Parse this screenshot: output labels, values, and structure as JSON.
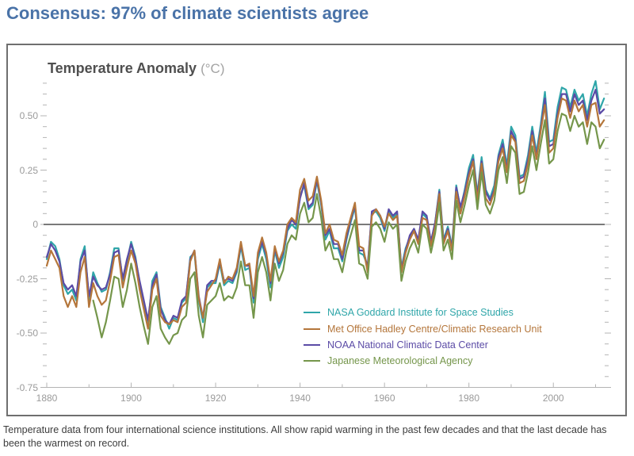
{
  "title": "Consensus: 97% of climate scientists agree",
  "chart": {
    "heading": "Temperature Anomaly",
    "unit": "(°C)"
  },
  "caption": "Temperature data from four international science institutions. All show rapid warming in the past few decades and that the last decade has been the warmest on record.",
  "colors": {
    "title_blue": "#4a73a8",
    "heading_gray": "#4f4f4f",
    "unit_gray": "#a3a3a3",
    "tick_label_gray": "#9a9a9a",
    "axis_gray": "#b4b4b4",
    "zero_line_gray": "#7a7a7a",
    "frame_border": "#6f6f6f",
    "caption_gray": "#3d3d3d"
  },
  "chart_data": {
    "type": "line",
    "title": "Temperature Anomaly (°C)",
    "xlabel": "",
    "ylabel": "Temperature Anomaly (°C)",
    "xlim": [
      1880,
      2013
    ],
    "ylim": [
      -0.78,
      0.68
    ],
    "grid": false,
    "legend_position": "inside-bottom-center",
    "x_ticks": [
      {
        "label": "1880",
        "value": 1880
      },
      {
        "label": "1900",
        "value": 1900
      },
      {
        "label": "1920",
        "value": 1920
      },
      {
        "label": "1940",
        "value": 1940
      },
      {
        "label": "1960",
        "value": 1960
      },
      {
        "label": "1980",
        "value": 1980
      },
      {
        "label": "2000",
        "value": 2000
      }
    ],
    "y_ticks": [
      {
        "label": "0.50",
        "value": 0.5
      },
      {
        "label": "0.25",
        "value": 0.25
      },
      {
        "label": "0",
        "value": 0
      },
      {
        "label": "-0.25",
        "value": -0.25
      },
      {
        "label": "-0.50",
        "value": -0.5
      },
      {
        "label": "-0.75",
        "value": -0.75
      }
    ],
    "minor_tick_step": 0.05,
    "x_minor_tick_step_years": 10,
    "series": [
      {
        "name": "NASA Goddard Institute for Space Studies",
        "color": "#2fa6a9",
        "start_year": 1880,
        "values": [
          -0.16,
          -0.08,
          -0.1,
          -0.16,
          -0.28,
          -0.32,
          -0.3,
          -0.35,
          -0.16,
          -0.1,
          -0.35,
          -0.22,
          -0.27,
          -0.31,
          -0.3,
          -0.22,
          -0.11,
          -0.11,
          -0.26,
          -0.17,
          -0.08,
          -0.15,
          -0.27,
          -0.36,
          -0.46,
          -0.26,
          -0.22,
          -0.38,
          -0.43,
          -0.48,
          -0.43,
          -0.44,
          -0.36,
          -0.34,
          -0.15,
          -0.13,
          -0.35,
          -0.45,
          -0.29,
          -0.27,
          -0.27,
          -0.18,
          -0.28,
          -0.26,
          -0.27,
          -0.22,
          -0.1,
          -0.21,
          -0.2,
          -0.36,
          -0.16,
          -0.09,
          -0.16,
          -0.29,
          -0.12,
          -0.2,
          -0.15,
          -0.03,
          0.0,
          -0.02,
          0.13,
          0.18,
          0.07,
          0.09,
          0.2,
          0.09,
          -0.07,
          -0.03,
          -0.11,
          -0.11,
          -0.17,
          -0.07,
          0.01,
          0.08,
          -0.13,
          -0.14,
          -0.19,
          0.05,
          0.06,
          0.03,
          -0.03,
          0.06,
          0.03,
          0.05,
          -0.2,
          -0.11,
          -0.06,
          -0.02,
          -0.08,
          0.05,
          0.03,
          -0.08,
          0.01,
          0.16,
          -0.07,
          -0.01,
          -0.1,
          0.18,
          0.07,
          0.16,
          0.26,
          0.32,
          0.14,
          0.31,
          0.16,
          0.12,
          0.18,
          0.32,
          0.39,
          0.27,
          0.45,
          0.41,
          0.22,
          0.23,
          0.32,
          0.45,
          0.33,
          0.46,
          0.61,
          0.38,
          0.39,
          0.54,
          0.63,
          0.62,
          0.54,
          0.62,
          0.57,
          0.6,
          0.5,
          0.6,
          0.66,
          0.53,
          0.58
        ]
      },
      {
        "name": "Met Office Hadley Centre/Climatic Research Unit",
        "color": "#b4763b",
        "start_year": 1880,
        "values": [
          -0.19,
          -0.12,
          -0.16,
          -0.2,
          -0.33,
          -0.38,
          -0.33,
          -0.38,
          -0.22,
          -0.15,
          -0.38,
          -0.27,
          -0.33,
          -0.37,
          -0.35,
          -0.26,
          -0.15,
          -0.14,
          -0.29,
          -0.2,
          -0.12,
          -0.18,
          -0.3,
          -0.39,
          -0.48,
          -0.3,
          -0.25,
          -0.42,
          -0.45,
          -0.46,
          -0.44,
          -0.45,
          -0.38,
          -0.36,
          -0.17,
          -0.12,
          -0.34,
          -0.43,
          -0.31,
          -0.28,
          -0.25,
          -0.16,
          -0.27,
          -0.24,
          -0.25,
          -0.2,
          -0.08,
          -0.19,
          -0.18,
          -0.33,
          -0.13,
          -0.06,
          -0.13,
          -0.26,
          -0.1,
          -0.17,
          -0.12,
          0.0,
          0.03,
          0.01,
          0.16,
          0.21,
          0.11,
          0.13,
          0.22,
          0.11,
          -0.04,
          0.0,
          -0.07,
          -0.08,
          -0.14,
          -0.04,
          0.03,
          0.1,
          -0.1,
          -0.11,
          -0.22,
          0.04,
          0.07,
          0.04,
          -0.01,
          0.05,
          0.02,
          0.04,
          -0.22,
          -0.13,
          -0.07,
          -0.03,
          -0.09,
          0.03,
          0.02,
          -0.1,
          -0.01,
          0.14,
          -0.09,
          -0.03,
          -0.12,
          0.15,
          0.05,
          0.13,
          0.22,
          0.29,
          0.11,
          0.28,
          0.12,
          0.09,
          0.15,
          0.29,
          0.35,
          0.24,
          0.41,
          0.38,
          0.19,
          0.2,
          0.28,
          0.41,
          0.3,
          0.43,
          0.55,
          0.33,
          0.35,
          0.49,
          0.58,
          0.57,
          0.49,
          0.57,
          0.52,
          0.55,
          0.45,
          0.55,
          0.56,
          0.45,
          0.48
        ]
      },
      {
        "name": "NOAA National Climatic Data Center",
        "color": "#5b4ba6",
        "start_year": 1880,
        "values": [
          -0.15,
          -0.09,
          -0.12,
          -0.17,
          -0.27,
          -0.3,
          -0.28,
          -0.33,
          -0.17,
          -0.12,
          -0.33,
          -0.24,
          -0.28,
          -0.3,
          -0.29,
          -0.23,
          -0.13,
          -0.12,
          -0.25,
          -0.16,
          -0.09,
          -0.16,
          -0.26,
          -0.35,
          -0.44,
          -0.28,
          -0.23,
          -0.39,
          -0.44,
          -0.46,
          -0.42,
          -0.43,
          -0.35,
          -0.33,
          -0.16,
          -0.12,
          -0.33,
          -0.43,
          -0.28,
          -0.26,
          -0.26,
          -0.17,
          -0.26,
          -0.25,
          -0.26,
          -0.21,
          -0.09,
          -0.19,
          -0.19,
          -0.34,
          -0.14,
          -0.08,
          -0.14,
          -0.27,
          -0.11,
          -0.18,
          -0.13,
          -0.02,
          0.02,
          0.0,
          0.12,
          0.19,
          0.08,
          0.1,
          0.21,
          0.1,
          -0.05,
          -0.02,
          -0.09,
          -0.09,
          -0.16,
          -0.06,
          0.02,
          0.09,
          -0.12,
          -0.12,
          -0.2,
          0.06,
          0.07,
          0.04,
          -0.02,
          0.07,
          0.04,
          0.06,
          -0.21,
          -0.12,
          -0.05,
          -0.02,
          -0.07,
          0.06,
          0.04,
          -0.08,
          0.01,
          0.15,
          -0.08,
          -0.02,
          -0.11,
          0.17,
          0.08,
          0.15,
          0.24,
          0.3,
          0.13,
          0.29,
          0.15,
          0.11,
          0.16,
          0.31,
          0.37,
          0.25,
          0.43,
          0.39,
          0.21,
          0.22,
          0.3,
          0.43,
          0.31,
          0.44,
          0.58,
          0.36,
          0.37,
          0.51,
          0.6,
          0.6,
          0.52,
          0.6,
          0.55,
          0.57,
          0.48,
          0.57,
          0.62,
          0.51,
          0.53
        ]
      },
      {
        "name": "Japanese Meteorological Agency",
        "color": "#75964b",
        "start_year": 1891,
        "values": [
          -0.35,
          -0.43,
          -0.52,
          -0.45,
          -0.35,
          -0.24,
          -0.25,
          -0.38,
          -0.3,
          -0.18,
          -0.27,
          -0.38,
          -0.47,
          -0.55,
          -0.38,
          -0.33,
          -0.48,
          -0.52,
          -0.55,
          -0.51,
          -0.5,
          -0.44,
          -0.42,
          -0.25,
          -0.22,
          -0.42,
          -0.52,
          -0.37,
          -0.35,
          -0.33,
          -0.27,
          -0.35,
          -0.33,
          -0.34,
          -0.29,
          -0.17,
          -0.28,
          -0.28,
          -0.43,
          -0.22,
          -0.15,
          -0.22,
          -0.35,
          -0.18,
          -0.26,
          -0.21,
          -0.09,
          -0.05,
          -0.07,
          0.05,
          0.1,
          0.01,
          0.03,
          0.14,
          0.03,
          -0.12,
          -0.08,
          -0.16,
          -0.16,
          -0.22,
          -0.12,
          -0.05,
          0.02,
          -0.18,
          -0.19,
          -0.25,
          -0.01,
          0.01,
          -0.02,
          -0.08,
          0.01,
          -0.02,
          0.0,
          -0.26,
          -0.17,
          -0.11,
          -0.07,
          -0.13,
          0.0,
          -0.02,
          -0.13,
          -0.04,
          0.1,
          -0.12,
          -0.07,
          -0.16,
          0.11,
          0.01,
          0.09,
          0.18,
          0.25,
          0.07,
          0.24,
          0.09,
          0.05,
          0.11,
          0.25,
          0.31,
          0.19,
          0.36,
          0.33,
          0.14,
          0.15,
          0.24,
          0.36,
          0.25,
          0.37,
          0.48,
          0.28,
          0.3,
          0.43,
          0.51,
          0.5,
          0.43,
          0.5,
          0.45,
          0.47,
          0.37,
          0.47,
          0.45,
          0.35,
          0.39
        ]
      }
    ]
  }
}
